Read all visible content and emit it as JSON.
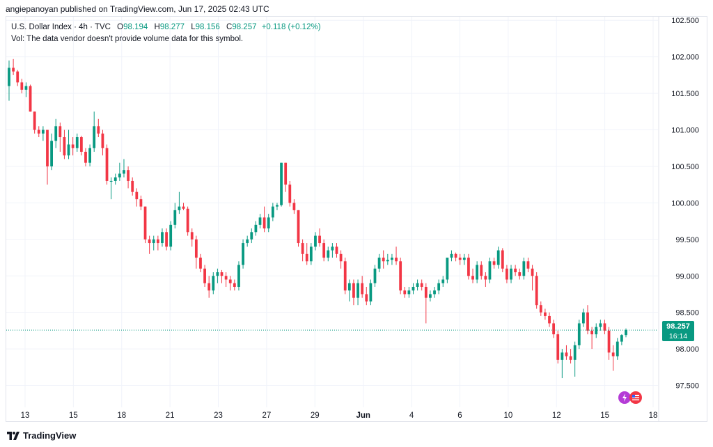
{
  "header": {
    "publish_line": "angiepanoyan published on TradingView.com, Jun 17, 2025 02:43 UTC"
  },
  "legend": {
    "symbol_line": "U.S. Dollar Index · 4h · TVC",
    "open_label": "O",
    "open_value": "98.194",
    "high_label": "H",
    "high_value": "98.277",
    "low_label": "L",
    "low_value": "98.156",
    "close_label": "C",
    "close_value": "98.257",
    "change": "+0.118 (+0.12%)",
    "volume_note": "Vol: The data vendor doesn't provide volume data for this symbol."
  },
  "last_price": {
    "value": "98.257",
    "countdown": "16:14"
  },
  "footer": {
    "brand": "TradingView"
  },
  "colors": {
    "up": "#089981",
    "down": "#f23645",
    "grid": "#f0f3fa",
    "axis_text": "#131722"
  },
  "chart_data": {
    "type": "candlestick",
    "ylim": [
      97.2,
      102.55
    ],
    "y_ticks": [
      "97.500",
      "98.000",
      "98.500",
      "99.000",
      "99.500",
      "100.000",
      "100.500",
      "101.000",
      "101.500",
      "102.000",
      "102.500"
    ],
    "x_tick_labels": [
      "13",
      "15",
      "18",
      "21",
      "23",
      "27",
      "29",
      "Jun",
      "4",
      "6",
      "10",
      "12",
      "15",
      "18"
    ],
    "last_price_line": 98.257,
    "candles": [
      [
        101.6,
        101.95,
        101.4,
        101.85
      ],
      [
        101.85,
        101.97,
        101.75,
        101.8
      ],
      [
        101.8,
        101.82,
        101.6,
        101.65
      ],
      [
        101.65,
        101.7,
        101.5,
        101.55
      ],
      [
        101.55,
        101.65,
        101.45,
        101.6
      ],
      [
        101.6,
        101.62,
        101.25,
        101.25
      ],
      [
        101.25,
        101.25,
        100.95,
        101.0
      ],
      [
        101.0,
        101.05,
        100.9,
        100.95
      ],
      [
        100.95,
        101.05,
        100.85,
        101.0
      ],
      [
        101.0,
        101.0,
        100.25,
        100.5
      ],
      [
        100.5,
        100.95,
        100.45,
        100.85
      ],
      [
        100.85,
        101.15,
        100.75,
        101.05
      ],
      [
        101.05,
        101.1,
        100.7,
        100.9
      ],
      [
        100.9,
        101.0,
        100.6,
        100.65
      ],
      [
        100.65,
        101.0,
        100.6,
        100.8
      ],
      [
        100.8,
        100.9,
        100.65,
        100.75
      ],
      [
        100.75,
        100.95,
        100.7,
        100.9
      ],
      [
        100.9,
        100.92,
        100.65,
        100.7
      ],
      [
        100.7,
        100.75,
        100.5,
        100.55
      ],
      [
        100.55,
        100.8,
        100.5,
        100.75
      ],
      [
        100.75,
        101.25,
        100.7,
        101.05
      ],
      [
        101.05,
        101.15,
        100.9,
        100.95
      ],
      [
        100.95,
        101.0,
        100.65,
        100.75
      ],
      [
        100.75,
        100.8,
        100.25,
        100.3
      ],
      [
        100.3,
        100.35,
        100.05,
        100.3
      ],
      [
        100.3,
        100.4,
        100.25,
        100.35
      ],
      [
        100.35,
        100.55,
        100.3,
        100.4
      ],
      [
        100.4,
        100.6,
        100.35,
        100.45
      ],
      [
        100.45,
        100.5,
        100.2,
        100.3
      ],
      [
        100.3,
        100.35,
        100.1,
        100.15
      ],
      [
        100.15,
        100.2,
        99.95,
        100.05
      ],
      [
        100.05,
        100.1,
        99.9,
        99.95
      ],
      [
        99.95,
        99.95,
        99.45,
        99.5
      ],
      [
        99.5,
        99.55,
        99.3,
        99.45
      ],
      [
        99.45,
        99.55,
        99.35,
        99.5
      ],
      [
        99.5,
        99.55,
        99.35,
        99.45
      ],
      [
        99.45,
        99.65,
        99.4,
        99.6
      ],
      [
        99.6,
        99.65,
        99.35,
        99.4
      ],
      [
        99.4,
        99.75,
        99.35,
        99.7
      ],
      [
        99.7,
        100.0,
        99.65,
        99.9
      ],
      [
        99.9,
        100.15,
        99.85,
        99.95
      ],
      [
        99.95,
        100.0,
        99.9,
        99.92
      ],
      [
        99.92,
        99.95,
        99.55,
        99.6
      ],
      [
        99.6,
        99.65,
        99.4,
        99.5
      ],
      [
        99.5,
        99.55,
        99.1,
        99.25
      ],
      [
        99.25,
        99.3,
        99.05,
        99.1
      ],
      [
        99.1,
        99.15,
        98.85,
        98.9
      ],
      [
        98.9,
        99.0,
        98.7,
        98.8
      ],
      [
        98.8,
        99.05,
        98.75,
        99.0
      ],
      [
        99.0,
        99.1,
        98.9,
        99.05
      ],
      [
        99.05,
        99.08,
        98.9,
        99.0
      ],
      [
        99.0,
        99.05,
        98.85,
        98.95
      ],
      [
        98.95,
        99.0,
        98.8,
        98.9
      ],
      [
        98.9,
        98.95,
        98.8,
        98.85
      ],
      [
        98.85,
        99.2,
        98.8,
        99.15
      ],
      [
        99.15,
        99.5,
        99.1,
        99.45
      ],
      [
        99.45,
        99.55,
        99.4,
        99.5
      ],
      [
        99.5,
        99.65,
        99.45,
        99.6
      ],
      [
        99.6,
        99.75,
        99.55,
        99.7
      ],
      [
        99.7,
        99.85,
        99.65,
        99.8
      ],
      [
        99.8,
        99.95,
        99.6,
        99.65
      ],
      [
        99.65,
        99.85,
        99.6,
        99.8
      ],
      [
        99.8,
        100.0,
        99.75,
        99.95
      ],
      [
        99.95,
        100.0,
        99.9,
        99.97
      ],
      [
        99.97,
        100.55,
        99.95,
        100.55
      ],
      [
        100.55,
        100.55,
        100.15,
        100.25
      ],
      [
        100.25,
        100.3,
        99.95,
        100.0
      ],
      [
        100.0,
        100.05,
        99.85,
        99.9
      ],
      [
        99.9,
        99.9,
        99.4,
        99.45
      ],
      [
        99.45,
        99.5,
        99.2,
        99.3
      ],
      [
        99.3,
        99.45,
        99.15,
        99.2
      ],
      [
        99.2,
        99.45,
        99.15,
        99.4
      ],
      [
        99.4,
        99.6,
        99.35,
        99.55
      ],
      [
        99.55,
        99.65,
        99.4,
        99.45
      ],
      [
        99.45,
        99.5,
        99.2,
        99.25
      ],
      [
        99.25,
        99.4,
        99.2,
        99.35
      ],
      [
        99.35,
        99.45,
        99.25,
        99.4
      ],
      [
        99.4,
        99.45,
        99.25,
        99.3
      ],
      [
        99.3,
        99.35,
        99.1,
        99.2
      ],
      [
        99.2,
        99.25,
        98.75,
        98.8
      ],
      [
        98.8,
        98.95,
        98.65,
        98.9
      ],
      [
        98.9,
        98.95,
        98.6,
        98.7
      ],
      [
        98.7,
        98.95,
        98.6,
        98.9
      ],
      [
        98.9,
        99.0,
        98.7,
        98.75
      ],
      [
        98.75,
        98.85,
        98.6,
        98.65
      ],
      [
        98.65,
        98.95,
        98.6,
        98.9
      ],
      [
        98.9,
        99.15,
        98.85,
        99.1
      ],
      [
        99.1,
        99.3,
        99.05,
        99.25
      ],
      [
        99.25,
        99.35,
        99.1,
        99.2
      ],
      [
        99.2,
        99.3,
        99.15,
        99.22
      ],
      [
        99.22,
        99.3,
        99.15,
        99.25
      ],
      [
        99.25,
        99.4,
        99.15,
        99.2
      ],
      [
        99.2,
        99.25,
        98.75,
        98.8
      ],
      [
        98.8,
        98.85,
        98.7,
        98.75
      ],
      [
        98.75,
        98.85,
        98.7,
        98.8
      ],
      [
        98.8,
        98.9,
        98.75,
        98.85
      ],
      [
        98.85,
        98.95,
        98.8,
        98.9
      ],
      [
        98.9,
        98.95,
        98.8,
        98.85
      ],
      [
        98.85,
        98.9,
        98.35,
        98.7
      ],
      [
        98.7,
        98.8,
        98.65,
        98.75
      ],
      [
        98.75,
        98.85,
        98.7,
        98.8
      ],
      [
        98.8,
        98.95,
        98.75,
        98.9
      ],
      [
        98.9,
        99.0,
        98.85,
        98.95
      ],
      [
        98.95,
        99.2,
        98.9,
        99.25
      ],
      [
        99.25,
        99.35,
        99.2,
        99.3
      ],
      [
        99.3,
        99.32,
        99.2,
        99.25
      ],
      [
        99.25,
        99.3,
        99.15,
        99.22
      ],
      [
        99.22,
        99.3,
        99.15,
        99.25
      ],
      [
        99.25,
        99.3,
        98.95,
        99.0
      ],
      [
        99.0,
        99.1,
        98.9,
        98.95
      ],
      [
        98.95,
        99.2,
        98.9,
        99.15
      ],
      [
        99.15,
        99.2,
        98.95,
        99.0
      ],
      [
        99.0,
        99.05,
        98.85,
        98.95
      ],
      [
        98.95,
        99.25,
        98.9,
        99.2
      ],
      [
        99.2,
        99.25,
        99.1,
        99.15
      ],
      [
        99.15,
        99.4,
        99.1,
        99.35
      ],
      [
        99.35,
        99.38,
        99.05,
        99.1
      ],
      [
        99.1,
        99.15,
        98.9,
        98.95
      ],
      [
        98.95,
        99.15,
        98.9,
        99.1
      ],
      [
        99.1,
        99.15,
        99.0,
        99.05
      ],
      [
        99.05,
        99.1,
        98.95,
        99.0
      ],
      [
        99.0,
        99.25,
        98.95,
        99.2
      ],
      [
        99.2,
        99.25,
        99.05,
        99.1
      ],
      [
        99.1,
        99.15,
        98.8,
        99.0
      ],
      [
        99.0,
        99.05,
        98.55,
        98.6
      ],
      [
        98.6,
        98.65,
        98.45,
        98.5
      ],
      [
        98.5,
        98.55,
        98.4,
        98.45
      ],
      [
        98.45,
        98.5,
        98.3,
        98.35
      ],
      [
        98.35,
        98.4,
        98.15,
        98.2
      ],
      [
        98.2,
        98.25,
        97.8,
        97.85
      ],
      [
        97.85,
        98.0,
        97.6,
        97.95
      ],
      [
        97.95,
        98.05,
        97.85,
        97.9
      ],
      [
        97.9,
        98.0,
        97.8,
        97.85
      ],
      [
        97.85,
        98.1,
        97.62,
        98.05
      ],
      [
        98.05,
        98.4,
        98.0,
        98.35
      ],
      [
        98.35,
        98.55,
        98.3,
        98.5
      ],
      [
        98.5,
        98.6,
        98.2,
        98.25
      ],
      [
        98.25,
        98.3,
        98.0,
        98.2
      ],
      [
        98.2,
        98.35,
        98.15,
        98.3
      ],
      [
        98.3,
        98.4,
        98.25,
        98.35
      ],
      [
        98.35,
        98.4,
        98.2,
        98.25
      ],
      [
        98.25,
        98.3,
        97.85,
        97.95
      ],
      [
        97.95,
        98.05,
        97.7,
        97.9
      ],
      [
        97.9,
        98.15,
        97.85,
        98.1
      ],
      [
        98.1,
        98.2,
        98.05,
        98.19
      ],
      [
        98.19,
        98.28,
        98.16,
        98.26
      ]
    ]
  }
}
